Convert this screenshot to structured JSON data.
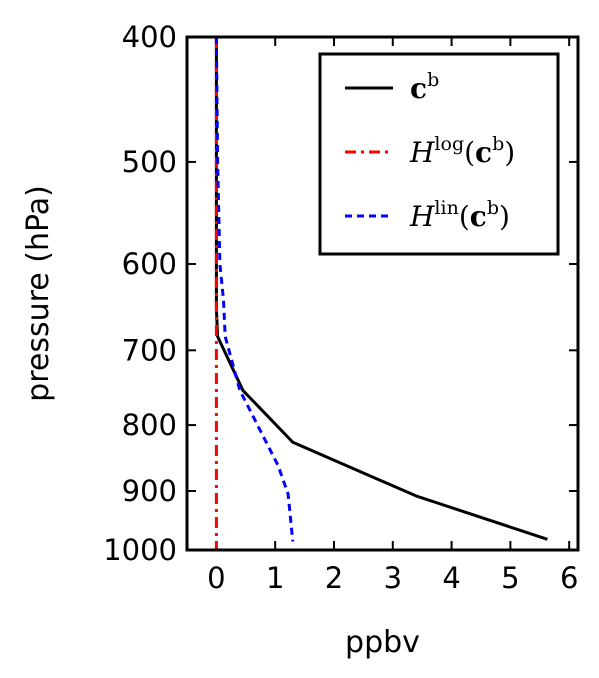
{
  "chart_data": {
    "type": "line",
    "xlabel": "ppbv",
    "ylabel": "pressure (hPa)",
    "xlim": [
      -0.5,
      6.15
    ],
    "ylim": [
      1000,
      400
    ],
    "yscale": "log",
    "xticks": [
      0,
      1,
      2,
      3,
      4,
      5,
      6
    ],
    "yticks": [
      400,
      500,
      600,
      700,
      800,
      900,
      1000
    ],
    "grid": false,
    "legend_position": "top-right",
    "series": [
      {
        "name": "c^b",
        "legend_main": "c",
        "legend_sup": "b",
        "color": "#000000",
        "style": "solid",
        "points": [
          [
            0.0,
            400
          ],
          [
            0.0,
            500
          ],
          [
            0.0,
            600
          ],
          [
            0.0,
            650
          ],
          [
            0.02,
            683
          ],
          [
            0.45,
            752
          ],
          [
            1.3,
            825
          ],
          [
            3.4,
            908
          ],
          [
            5.63,
            981
          ]
        ]
      },
      {
        "name": "H^log(c^b)",
        "legend_main": "H",
        "legend_sup": "log",
        "legend_paren": "c",
        "legend_paren_sup": "b",
        "color": "#ff0000",
        "style": "dashdot",
        "points": [
          [
            0.0,
            400
          ],
          [
            0.0,
            600
          ],
          [
            0.0,
            800
          ],
          [
            0.0,
            1000
          ]
        ]
      },
      {
        "name": "H^lin(c^b)",
        "legend_main": "H",
        "legend_sup": "lin",
        "legend_paren": "c",
        "legend_paren_sup": "b",
        "color": "#0000ff",
        "style": "dashed",
        "points": [
          [
            0.0,
            400
          ],
          [
            0.02,
            500
          ],
          [
            0.06,
            600
          ],
          [
            0.12,
            640
          ],
          [
            0.15,
            683
          ],
          [
            0.4,
            752
          ],
          [
            1.05,
            860
          ],
          [
            1.22,
            905
          ],
          [
            1.3,
            985
          ]
        ]
      }
    ]
  }
}
